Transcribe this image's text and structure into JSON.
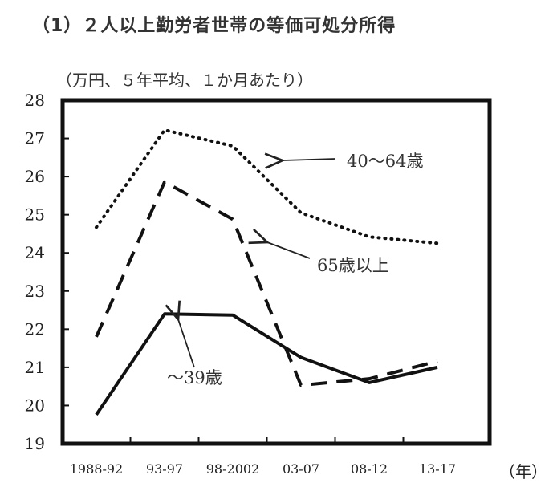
{
  "chart_data": {
    "type": "line",
    "title": "（1）２人以上勤労者世帯の等価可処分所得",
    "subtitle": "（万円、５年平均、１か月あたり）",
    "xlabel": "（年）",
    "ylabel": "",
    "ylim": [
      19,
      28
    ],
    "yticks": [
      "19",
      "20",
      "21",
      "22",
      "23",
      "24",
      "25",
      "26",
      "27",
      "28"
    ],
    "categories": [
      "1988-92",
      "93-97",
      "98-2002",
      "03-07",
      "08-12",
      "13-17"
    ],
    "grid": false,
    "series": [
      {
        "name": "40〜64歳",
        "style": "dotted",
        "values": [
          24.67,
          27.22,
          26.8,
          25.05,
          24.42,
          24.25
        ]
      },
      {
        "name": "65歳以上",
        "style": "dashed",
        "values": [
          21.8,
          25.86,
          24.88,
          20.53,
          20.7,
          21.16
        ]
      },
      {
        "name": "〜39歳",
        "style": "solid",
        "values": [
          19.76,
          22.4,
          22.37,
          21.26,
          20.6,
          21.0
        ]
      }
    ]
  }
}
